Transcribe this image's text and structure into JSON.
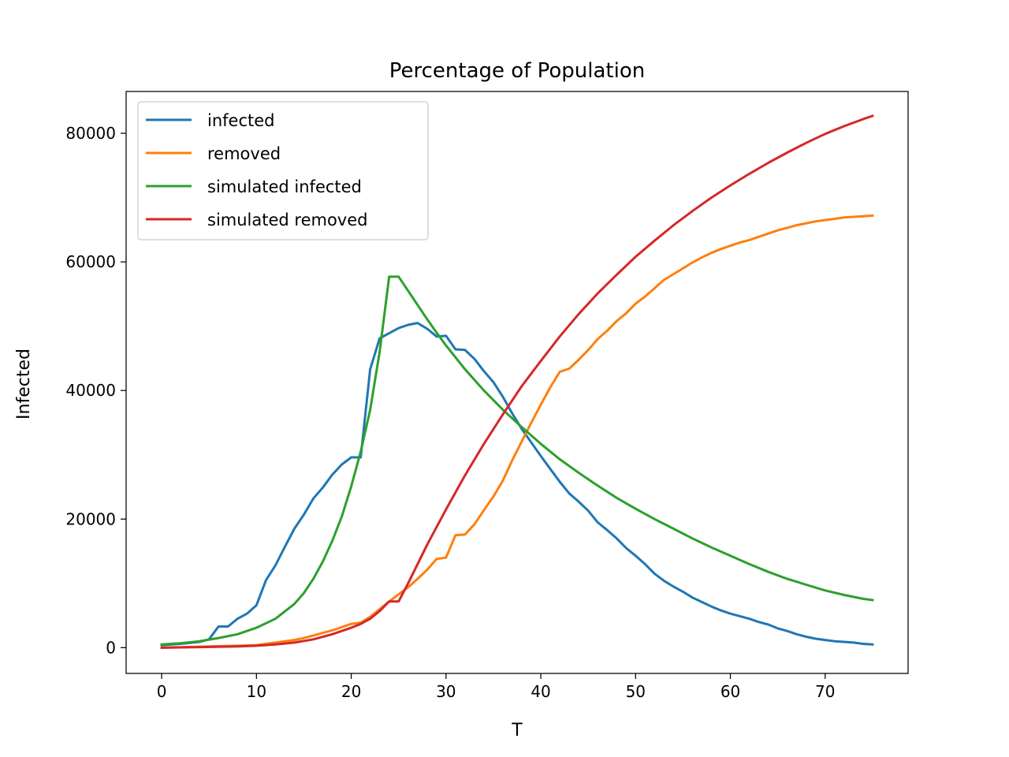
{
  "chart_data": {
    "type": "line",
    "title": "Percentage of Population",
    "xlabel": "T",
    "ylabel": "Infected",
    "xlim": [
      -3.75,
      78.75
    ],
    "ylim": [
      -4000,
      86500
    ],
    "xticks": [
      0,
      10,
      20,
      30,
      40,
      50,
      60,
      70
    ],
    "yticks": [
      0,
      20000,
      40000,
      60000,
      80000
    ],
    "grid": false,
    "legend_position": "top-left",
    "series": [
      {
        "name": "infected",
        "color": "#1f77b4",
        "points": [
          [
            0,
            400
          ],
          [
            2,
            600
          ],
          [
            4,
            900
          ],
          [
            5,
            1300
          ],
          [
            6,
            3300
          ],
          [
            7,
            3300
          ],
          [
            8,
            4500
          ],
          [
            9,
            5300
          ],
          [
            10,
            6600
          ],
          [
            11,
            10500
          ],
          [
            12,
            12800
          ],
          [
            13,
            15700
          ],
          [
            14,
            18500
          ],
          [
            15,
            20700
          ],
          [
            16,
            23200
          ],
          [
            17,
            24900
          ],
          [
            18,
            26900
          ],
          [
            19,
            28500
          ],
          [
            20,
            29600
          ],
          [
            21,
            29600
          ],
          [
            22,
            43300
          ],
          [
            23,
            48100
          ],
          [
            24,
            48900
          ],
          [
            25,
            49700
          ],
          [
            26,
            50200
          ],
          [
            27,
            50500
          ],
          [
            28,
            49600
          ],
          [
            29,
            48400
          ],
          [
            30,
            48500
          ],
          [
            31,
            46400
          ],
          [
            32,
            46300
          ],
          [
            33,
            44900
          ],
          [
            34,
            43000
          ],
          [
            35,
            41300
          ],
          [
            36,
            39000
          ],
          [
            37,
            36400
          ],
          [
            38,
            34000
          ],
          [
            39,
            31900
          ],
          [
            40,
            29800
          ],
          [
            41,
            27800
          ],
          [
            42,
            25800
          ],
          [
            43,
            24000
          ],
          [
            44,
            22700
          ],
          [
            45,
            21300
          ],
          [
            46,
            19500
          ],
          [
            47,
            18300
          ],
          [
            48,
            17000
          ],
          [
            49,
            15500
          ],
          [
            50,
            14300
          ],
          [
            51,
            13000
          ],
          [
            52,
            11500
          ],
          [
            53,
            10400
          ],
          [
            54,
            9500
          ],
          [
            55,
            8700
          ],
          [
            56,
            7800
          ],
          [
            57,
            7100
          ],
          [
            58,
            6400
          ],
          [
            59,
            5800
          ],
          [
            60,
            5300
          ],
          [
            61,
            4900
          ],
          [
            62,
            4500
          ],
          [
            63,
            4000
          ],
          [
            64,
            3600
          ],
          [
            65,
            3000
          ],
          [
            66,
            2600
          ],
          [
            67,
            2100
          ],
          [
            68,
            1700
          ],
          [
            69,
            1400
          ],
          [
            70,
            1200
          ],
          [
            71,
            1000
          ],
          [
            72,
            900
          ],
          [
            73,
            800
          ],
          [
            74,
            600
          ],
          [
            75,
            500
          ]
        ]
      },
      {
        "name": "removed",
        "color": "#ff7f0e",
        "points": [
          [
            0,
            0
          ],
          [
            5,
            200
          ],
          [
            8,
            300
          ],
          [
            10,
            400
          ],
          [
            12,
            800
          ],
          [
            14,
            1200
          ],
          [
            15,
            1500
          ],
          [
            16,
            1900
          ],
          [
            17,
            2300
          ],
          [
            18,
            2700
          ],
          [
            19,
            3200
          ],
          [
            20,
            3700
          ],
          [
            21,
            3900
          ],
          [
            22,
            4800
          ],
          [
            23,
            6000
          ],
          [
            24,
            7200
          ],
          [
            25,
            8300
          ],
          [
            26,
            9400
          ],
          [
            27,
            10700
          ],
          [
            28,
            12100
          ],
          [
            29,
            13800
          ],
          [
            30,
            14000
          ],
          [
            31,
            17500
          ],
          [
            32,
            17600
          ],
          [
            33,
            19200
          ],
          [
            34,
            21400
          ],
          [
            35,
            23500
          ],
          [
            36,
            26000
          ],
          [
            37,
            29200
          ],
          [
            38,
            32100
          ],
          [
            39,
            35000
          ],
          [
            40,
            37800
          ],
          [
            41,
            40500
          ],
          [
            42,
            42900
          ],
          [
            43,
            43400
          ],
          [
            44,
            44800
          ],
          [
            45,
            46300
          ],
          [
            46,
            48000
          ],
          [
            47,
            49300
          ],
          [
            48,
            50800
          ],
          [
            49,
            52000
          ],
          [
            50,
            53500
          ],
          [
            51,
            54600
          ],
          [
            52,
            55900
          ],
          [
            53,
            57200
          ],
          [
            54,
            58100
          ],
          [
            55,
            59000
          ],
          [
            56,
            59900
          ],
          [
            57,
            60700
          ],
          [
            58,
            61400
          ],
          [
            59,
            62000
          ],
          [
            60,
            62500
          ],
          [
            61,
            63000
          ],
          [
            62,
            63400
          ],
          [
            63,
            63900
          ],
          [
            64,
            64400
          ],
          [
            65,
            64900
          ],
          [
            66,
            65300
          ],
          [
            67,
            65700
          ],
          [
            68,
            66000
          ],
          [
            69,
            66300
          ],
          [
            70,
            66500
          ],
          [
            71,
            66700
          ],
          [
            72,
            66900
          ],
          [
            73,
            67000
          ],
          [
            74,
            67100
          ],
          [
            75,
            67200
          ]
        ]
      },
      {
        "name": "simulated infected",
        "color": "#2ca02c",
        "points": [
          [
            0,
            500
          ],
          [
            2,
            700
          ],
          [
            4,
            1000
          ],
          [
            6,
            1500
          ],
          [
            8,
            2100
          ],
          [
            10,
            3100
          ],
          [
            12,
            4500
          ],
          [
            14,
            6800
          ],
          [
            15,
            8500
          ],
          [
            16,
            10700
          ],
          [
            17,
            13400
          ],
          [
            18,
            16600
          ],
          [
            19,
            20400
          ],
          [
            20,
            25100
          ],
          [
            21,
            30500
          ],
          [
            22,
            37000
          ],
          [
            23,
            46000
          ],
          [
            24,
            57700
          ],
          [
            25,
            57700
          ],
          [
            26,
            55500
          ],
          [
            27,
            53300
          ],
          [
            28,
            51100
          ],
          [
            29,
            49000
          ],
          [
            30,
            47000
          ],
          [
            32,
            43300
          ],
          [
            34,
            40000
          ],
          [
            36,
            37000
          ],
          [
            38,
            34300
          ],
          [
            40,
            31700
          ],
          [
            42,
            29300
          ],
          [
            44,
            27200
          ],
          [
            46,
            25200
          ],
          [
            48,
            23300
          ],
          [
            50,
            21600
          ],
          [
            52,
            20000
          ],
          [
            54,
            18500
          ],
          [
            56,
            17000
          ],
          [
            58,
            15600
          ],
          [
            60,
            14300
          ],
          [
            62,
            13000
          ],
          [
            64,
            11800
          ],
          [
            66,
            10700
          ],
          [
            68,
            9800
          ],
          [
            70,
            8900
          ],
          [
            72,
            8200
          ],
          [
            74,
            7600
          ],
          [
            75,
            7400
          ]
        ]
      },
      {
        "name": "simulated removed",
        "color": "#d62728",
        "points": [
          [
            0,
            0
          ],
          [
            4,
            100
          ],
          [
            8,
            200
          ],
          [
            10,
            300
          ],
          [
            12,
            500
          ],
          [
            14,
            800
          ],
          [
            16,
            1300
          ],
          [
            18,
            2100
          ],
          [
            20,
            3100
          ],
          [
            21,
            3700
          ],
          [
            22,
            4500
          ],
          [
            23,
            5700
          ],
          [
            24,
            7200
          ],
          [
            25,
            7200
          ],
          [
            26,
            10000
          ],
          [
            28,
            16000
          ],
          [
            30,
            21500
          ],
          [
            32,
            26800
          ],
          [
            34,
            31700
          ],
          [
            36,
            36300
          ],
          [
            38,
            40700
          ],
          [
            40,
            44600
          ],
          [
            42,
            48400
          ],
          [
            44,
            51900
          ],
          [
            46,
            55100
          ],
          [
            48,
            58000
          ],
          [
            50,
            60800
          ],
          [
            52,
            63300
          ],
          [
            54,
            65700
          ],
          [
            56,
            67900
          ],
          [
            58,
            70000
          ],
          [
            60,
            71900
          ],
          [
            62,
            73700
          ],
          [
            64,
            75400
          ],
          [
            66,
            77000
          ],
          [
            68,
            78500
          ],
          [
            70,
            79900
          ],
          [
            72,
            81100
          ],
          [
            74,
            82200
          ],
          [
            75,
            82700
          ]
        ]
      }
    ]
  }
}
